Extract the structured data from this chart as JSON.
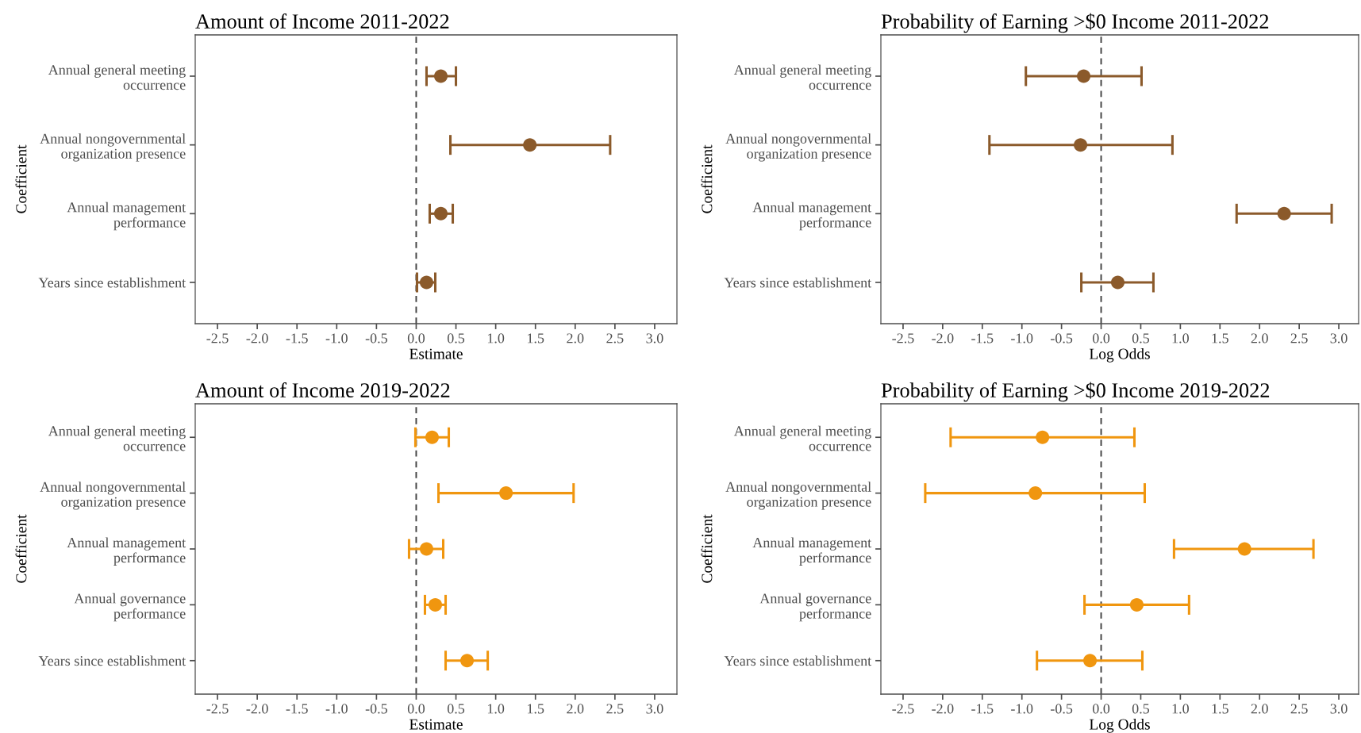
{
  "chart_data": [
    {
      "type": "scatter",
      "title": "Amount of Income 2011-2022",
      "xlabel": "Estimate",
      "ylabel": "Coefficient",
      "orientation": "horizontal",
      "marker": "circle",
      "grid": false,
      "categories": [
        "Annual general meeting\noccurrence",
        "Annual nongovernmental\norganization presence",
        "Annual management\nperformance",
        "Years since establishment"
      ],
      "series": [
        {
          "color": "#8b5a2b",
          "values": [
            0.31,
            1.43,
            0.31,
            0.13
          ],
          "errors": [
            [
              0.13,
              0.5
            ],
            [
              0.43,
              2.44
            ],
            [
              0.17,
              0.46
            ],
            [
              0.01,
              0.24
            ]
          ]
        }
      ],
      "xlim": [
        -2.78,
        3.28
      ],
      "xticks": [
        {
          "value": -2.5,
          "label": "-2.5"
        },
        {
          "value": -2.0,
          "label": "-2.0"
        },
        {
          "value": -1.5,
          "label": "-1.5"
        },
        {
          "value": -1.0,
          "label": "-1.0"
        },
        {
          "value": -0.5,
          "label": "-0.5"
        },
        {
          "value": 0.0,
          "label": "0.0"
        },
        {
          "value": 0.5,
          "label": "0.5"
        },
        {
          "value": 1.0,
          "label": "1.0"
        },
        {
          "value": 1.5,
          "label": "1.5"
        },
        {
          "value": 2.0,
          "label": "2.0"
        },
        {
          "value": 2.5,
          "label": "2.5"
        },
        {
          "value": 3.0,
          "label": "3.0"
        }
      ],
      "ref_lines": [
        {
          "axis": "x",
          "value": 0,
          "color": "#444444",
          "line_style": "dashed"
        }
      ]
    },
    {
      "type": "scatter",
      "title": "Probability of Earning >$0 Income 2011-2022",
      "xlabel": "Log Odds",
      "ylabel": "Coefficient",
      "orientation": "horizontal",
      "marker": "circle",
      "grid": false,
      "categories": [
        "Annual general meeting\noccurrence",
        "Annual nongovernmental\norganization presence",
        "Annual management\nperformance",
        "Years since establishment"
      ],
      "series": [
        {
          "color": "#8b5a2b",
          "values": [
            -0.22,
            -0.26,
            2.31,
            0.21
          ],
          "errors": [
            [
              -0.95,
              0.51
            ],
            [
              -1.41,
              0.9
            ],
            [
              1.71,
              2.91
            ],
            [
              -0.25,
              0.66
            ]
          ]
        }
      ],
      "xlim": [
        -2.78,
        3.25
      ],
      "xticks": [
        {
          "value": -2.5,
          "label": "-2.5"
        },
        {
          "value": -2.0,
          "label": "-2.0"
        },
        {
          "value": -1.5,
          "label": "-1.5"
        },
        {
          "value": -1.0,
          "label": "-1.0"
        },
        {
          "value": -0.5,
          "label": "-0.5"
        },
        {
          "value": 0.0,
          "label": "0.0"
        },
        {
          "value": 0.5,
          "label": "0.5"
        },
        {
          "value": 1.0,
          "label": "1.0"
        },
        {
          "value": 1.5,
          "label": "1.5"
        },
        {
          "value": 2.0,
          "label": "2.0"
        },
        {
          "value": 2.5,
          "label": "2.5"
        },
        {
          "value": 3.0,
          "label": "3.0"
        }
      ],
      "ref_lines": [
        {
          "axis": "x",
          "value": 0,
          "color": "#444444",
          "line_style": "dashed"
        }
      ]
    },
    {
      "type": "scatter",
      "title": "Amount of Income 2019-2022",
      "xlabel": "Estimate",
      "ylabel": "Coefficient",
      "orientation": "horizontal",
      "marker": "circle",
      "grid": false,
      "categories": [
        "Annual general meeting\noccurrence",
        "Annual nongovernmental\norganization presence",
        "Annual management\nperformance",
        "Annual governance\nperformance",
        "Years since establishment"
      ],
      "series": [
        {
          "color": "#f0960f",
          "values": [
            0.2,
            1.13,
            0.13,
            0.24,
            0.64
          ],
          "errors": [
            [
              -0.01,
              0.41
            ],
            [
              0.28,
              1.98
            ],
            [
              -0.09,
              0.34
            ],
            [
              0.11,
              0.37
            ],
            [
              0.37,
              0.9
            ]
          ]
        }
      ],
      "xlim": [
        -2.78,
        3.28
      ],
      "xticks": [
        {
          "value": -2.5,
          "label": "-2.5"
        },
        {
          "value": -2.0,
          "label": "-2.0"
        },
        {
          "value": -1.5,
          "label": "-1.5"
        },
        {
          "value": -1.0,
          "label": "-1.0"
        },
        {
          "value": -0.5,
          "label": "-0.5"
        },
        {
          "value": 0.0,
          "label": "0.0"
        },
        {
          "value": 0.5,
          "label": "0.5"
        },
        {
          "value": 1.0,
          "label": "1.0"
        },
        {
          "value": 1.5,
          "label": "1.5"
        },
        {
          "value": 2.0,
          "label": "2.0"
        },
        {
          "value": 2.5,
          "label": "2.5"
        },
        {
          "value": 3.0,
          "label": "3.0"
        }
      ],
      "ref_lines": [
        {
          "axis": "x",
          "value": 0,
          "color": "#444444",
          "line_style": "dashed"
        }
      ]
    },
    {
      "type": "scatter",
      "title": "Probability of Earning >$0 Income 2019-2022",
      "xlabel": "Log Odds",
      "ylabel": "Coefficient",
      "orientation": "horizontal",
      "marker": "circle",
      "grid": false,
      "categories": [
        "Annual general meeting\noccurrence",
        "Annual nongovernmental\norganization presence",
        "Annual management\nperformance",
        "Annual governance\nperformance",
        "Years since establishment"
      ],
      "series": [
        {
          "color": "#f0960f",
          "values": [
            -0.74,
            -0.83,
            1.81,
            0.45,
            -0.14
          ],
          "errors": [
            [
              -1.9,
              0.42
            ],
            [
              -2.22,
              0.55
            ],
            [
              0.92,
              2.68
            ],
            [
              -0.21,
              1.11
            ],
            [
              -0.81,
              0.52
            ]
          ]
        }
      ],
      "xlim": [
        -2.78,
        3.25
      ],
      "xticks": [
        {
          "value": -2.5,
          "label": "-2.5"
        },
        {
          "value": -2.0,
          "label": "-2.0"
        },
        {
          "value": -1.5,
          "label": "-1.5"
        },
        {
          "value": -1.0,
          "label": "-1.0"
        },
        {
          "value": -0.5,
          "label": "-0.5"
        },
        {
          "value": 0.0,
          "label": "0.0"
        },
        {
          "value": 0.5,
          "label": "0.5"
        },
        {
          "value": 1.0,
          "label": "1.0"
        },
        {
          "value": 1.5,
          "label": "1.5"
        },
        {
          "value": 2.0,
          "label": "2.0"
        },
        {
          "value": 2.5,
          "label": "2.5"
        },
        {
          "value": 3.0,
          "label": "3.0"
        }
      ],
      "ref_lines": [
        {
          "axis": "x",
          "value": 0,
          "color": "#444444",
          "line_style": "dashed"
        }
      ]
    }
  ]
}
